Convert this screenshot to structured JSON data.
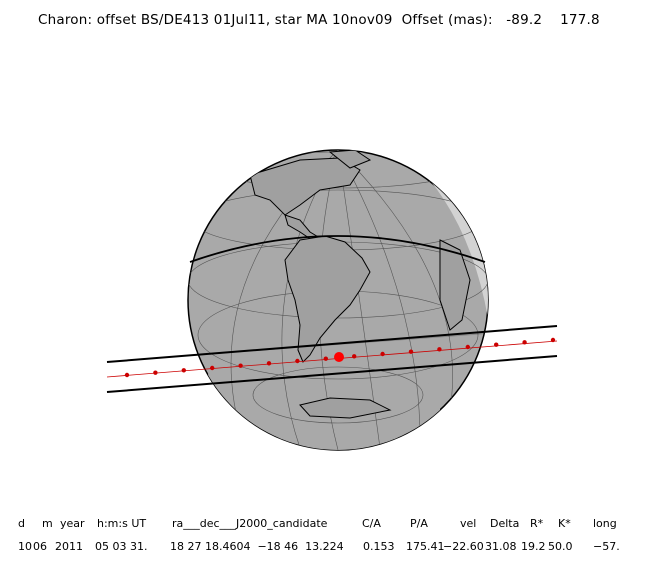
{
  "title": "Charon: offset BS/DE413 01Jul11, star MA 10nov09  Offset (mas):   -89.2    177.8",
  "table": {
    "headers": [
      "d",
      "m",
      "year",
      "h:m:s UT",
      "ra___dec___J2000_candidate",
      "C/A",
      "P/A",
      "vel",
      "Delta",
      "R*",
      "K*",
      "long"
    ],
    "values": [
      "10",
      "06",
      "2011",
      "05 03 31.",
      "18 27 18.4604  −18 46  13.224",
      "0.153",
      "175.41",
      "−22.60",
      "31.08",
      "19.2",
      "50.0",
      "−57."
    ]
  },
  "colors": {
    "ocean": "#a9a9a9",
    "night": "#8e8e8e",
    "twilight": "#d3d3d3",
    "track": "#cc0000",
    "lines": "#000000"
  },
  "diagram": {
    "type": "occultation-map",
    "track_points": 16,
    "highlight_point": "closest-approach"
  }
}
